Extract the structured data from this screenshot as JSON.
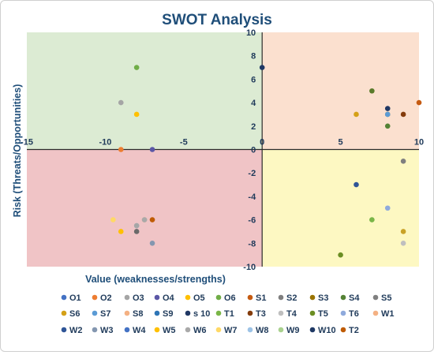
{
  "chart_data": {
    "type": "scatter",
    "title": "SWOT Analysis",
    "xlabel": "Value (weaknesses/strengths)",
    "ylabel": "Risk (Threats/Opportunities)",
    "xlim": [
      -15,
      10
    ],
    "ylim": [
      -10,
      10
    ],
    "x_ticks": [
      -15,
      -10,
      -5,
      0,
      5,
      10
    ],
    "y_ticks": [
      10,
      8,
      6,
      4,
      2,
      0,
      -2,
      -4,
      -6,
      -8,
      -10
    ],
    "grid": false,
    "legend_position": "bottom",
    "quadrants": [
      {
        "region": "top-left",
        "color": "#dcebd3"
      },
      {
        "region": "top-right",
        "color": "#fbe0cf"
      },
      {
        "region": "bottom-left",
        "color": "#f0c4c6"
      },
      {
        "region": "bottom-right",
        "color": "#fdf8c2"
      }
    ],
    "series": [
      {
        "name": "O1",
        "color": "#4472c4",
        "x": null,
        "y": null
      },
      {
        "name": "O2",
        "color": "#ed7d31",
        "x": -9,
        "y": 0
      },
      {
        "name": "O3",
        "color": "#a5a5a5",
        "x": -9,
        "y": 4
      },
      {
        "name": "O4",
        "color": "#5b57a6",
        "x": -7,
        "y": 0
      },
      {
        "name": "O5",
        "color": "#ffc000",
        "x": -8,
        "y": 3
      },
      {
        "name": "O6",
        "color": "#70ad47",
        "x": -8,
        "y": 7
      },
      {
        "name": "S1",
        "color": "#c55a11",
        "x": 10,
        "y": 4
      },
      {
        "name": "S2",
        "color": "#7f7f7f",
        "x": 9,
        "y": -1
      },
      {
        "name": "S3",
        "color": "#997300",
        "x": 8,
        "y": 3
      },
      {
        "name": "S4",
        "color": "#548235",
        "x": 8,
        "y": 2
      },
      {
        "name": "S5",
        "color": "#808080",
        "x": null,
        "y": null
      },
      {
        "name": "S6",
        "color": "#d4a017",
        "x": 6,
        "y": 3
      },
      {
        "name": "S7",
        "color": "#5b9bd5",
        "x": 8,
        "y": 3
      },
      {
        "name": "S8",
        "color": "#f4b183",
        "x": null,
        "y": null
      },
      {
        "name": "S9",
        "color": "#2e75b6",
        "x": null,
        "y": null
      },
      {
        "name": "s 10",
        "color": "#203864",
        "x": 8,
        "y": 3.5
      },
      {
        "name": "T1",
        "color": "#7ab648",
        "x": 7,
        "y": -6
      },
      {
        "name": "T3",
        "color": "#843c0c",
        "x": 9,
        "y": 3
      },
      {
        "name": "T4",
        "color": "#bfbfbf",
        "x": 9,
        "y": -8
      },
      {
        "name": "T5",
        "color": "#6b8e23",
        "x": 5,
        "y": -9
      },
      {
        "name": "T6",
        "color": "#8faadc",
        "x": 8,
        "y": -5
      },
      {
        "name": "W1",
        "color": "#f4b183",
        "x": -7.5,
        "y": -6
      },
      {
        "name": "W2",
        "color": "#2f5597",
        "x": 6,
        "y": -3
      },
      {
        "name": "W3",
        "color": "#8497b0",
        "x": -7,
        "y": -8
      },
      {
        "name": "W4",
        "color": "#4472c4",
        "x": null,
        "y": null
      },
      {
        "name": "W5",
        "color": "#ffc000",
        "x": -9,
        "y": -7
      },
      {
        "name": "W6",
        "color": "#a9a9a9",
        "x": -7.5,
        "y": -6
      },
      {
        "name": "W7",
        "color": "#ffd966",
        "x": -9.5,
        "y": -6
      },
      {
        "name": "W8",
        "color": "#9dc3e6",
        "x": -8,
        "y": -6.5
      },
      {
        "name": "W9",
        "color": "#a9d18e",
        "x": null,
        "y": null
      },
      {
        "name": "W10",
        "color": "#1f3864",
        "x": 0,
        "y": 7
      },
      {
        "name": "T2",
        "color": "#bf5b04",
        "x": -7,
        "y": -6
      }
    ],
    "extra_points": [
      {
        "color": "#c9a227",
        "x": 9,
        "y": -7
      },
      {
        "color": "#6a6a6a",
        "x": -8,
        "y": -7
      },
      {
        "color": "#5a7a2a",
        "x": 7,
        "y": 5
      },
      {
        "color": "#a6a6a6",
        "x": -8,
        "y": -6.5
      }
    ]
  }
}
